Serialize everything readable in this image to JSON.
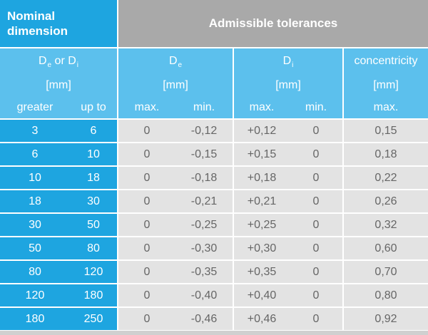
{
  "header": {
    "nominal_dimension": "Nominal dimension",
    "admissible_tolerances": "Admissible tolerances",
    "de_or_di_prefix": "D",
    "de_or_di_sub1": "e",
    "de_or_di_mid": " or D",
    "de_or_di_sub2": "i",
    "de_main": "D",
    "de_sub": "e",
    "di_main": "D",
    "di_sub": "i",
    "concentricity": "concentricity",
    "unit": "[mm]",
    "greater": "greater",
    "up_to": "up to",
    "max": "max.",
    "min": "min."
  },
  "rows": [
    {
      "greater": "3",
      "up_to": "6",
      "de_max": "0",
      "de_min": "-0,12",
      "di_max": "+0,12",
      "di_min": "0",
      "conc": "0,15"
    },
    {
      "greater": "6",
      "up_to": "10",
      "de_max": "0",
      "de_min": "-0,15",
      "di_max": "+0,15",
      "di_min": "0",
      "conc": "0,18"
    },
    {
      "greater": "10",
      "up_to": "18",
      "de_max": "0",
      "de_min": "-0,18",
      "di_max": "+0,18",
      "di_min": "0",
      "conc": "0,22"
    },
    {
      "greater": "18",
      "up_to": "30",
      "de_max": "0",
      "de_min": "-0,21",
      "di_max": "+0,21",
      "di_min": "0",
      "conc": "0,26"
    },
    {
      "greater": "30",
      "up_to": "50",
      "de_max": "0",
      "de_min": "-0,25",
      "di_max": "+0,25",
      "di_min": "0",
      "conc": "0,32"
    },
    {
      "greater": "50",
      "up_to": "80",
      "de_max": "0",
      "de_min": "-0,30",
      "di_max": "+0,30",
      "di_min": "0",
      "conc": "0,60"
    },
    {
      "greater": "80",
      "up_to": "120",
      "de_max": "0",
      "de_min": "-0,35",
      "di_max": "+0,35",
      "di_min": "0",
      "conc": "0,70"
    },
    {
      "greater": "120",
      "up_to": "180",
      "de_max": "0",
      "de_min": "-0,40",
      "di_max": "+0,40",
      "di_min": "0",
      "conc": "0,80"
    },
    {
      "greater": "180",
      "up_to": "250",
      "de_max": "0",
      "de_min": "-0,46",
      "di_max": "+0,46",
      "di_min": "0",
      "conc": "0,92"
    }
  ],
  "colors": {
    "header_blue": "#1ea5e0",
    "subheader_blue": "#5cc0ed",
    "header_grey": "#a9a9a9",
    "data_grey": "#e3e3e3",
    "data_text": "#666666"
  }
}
